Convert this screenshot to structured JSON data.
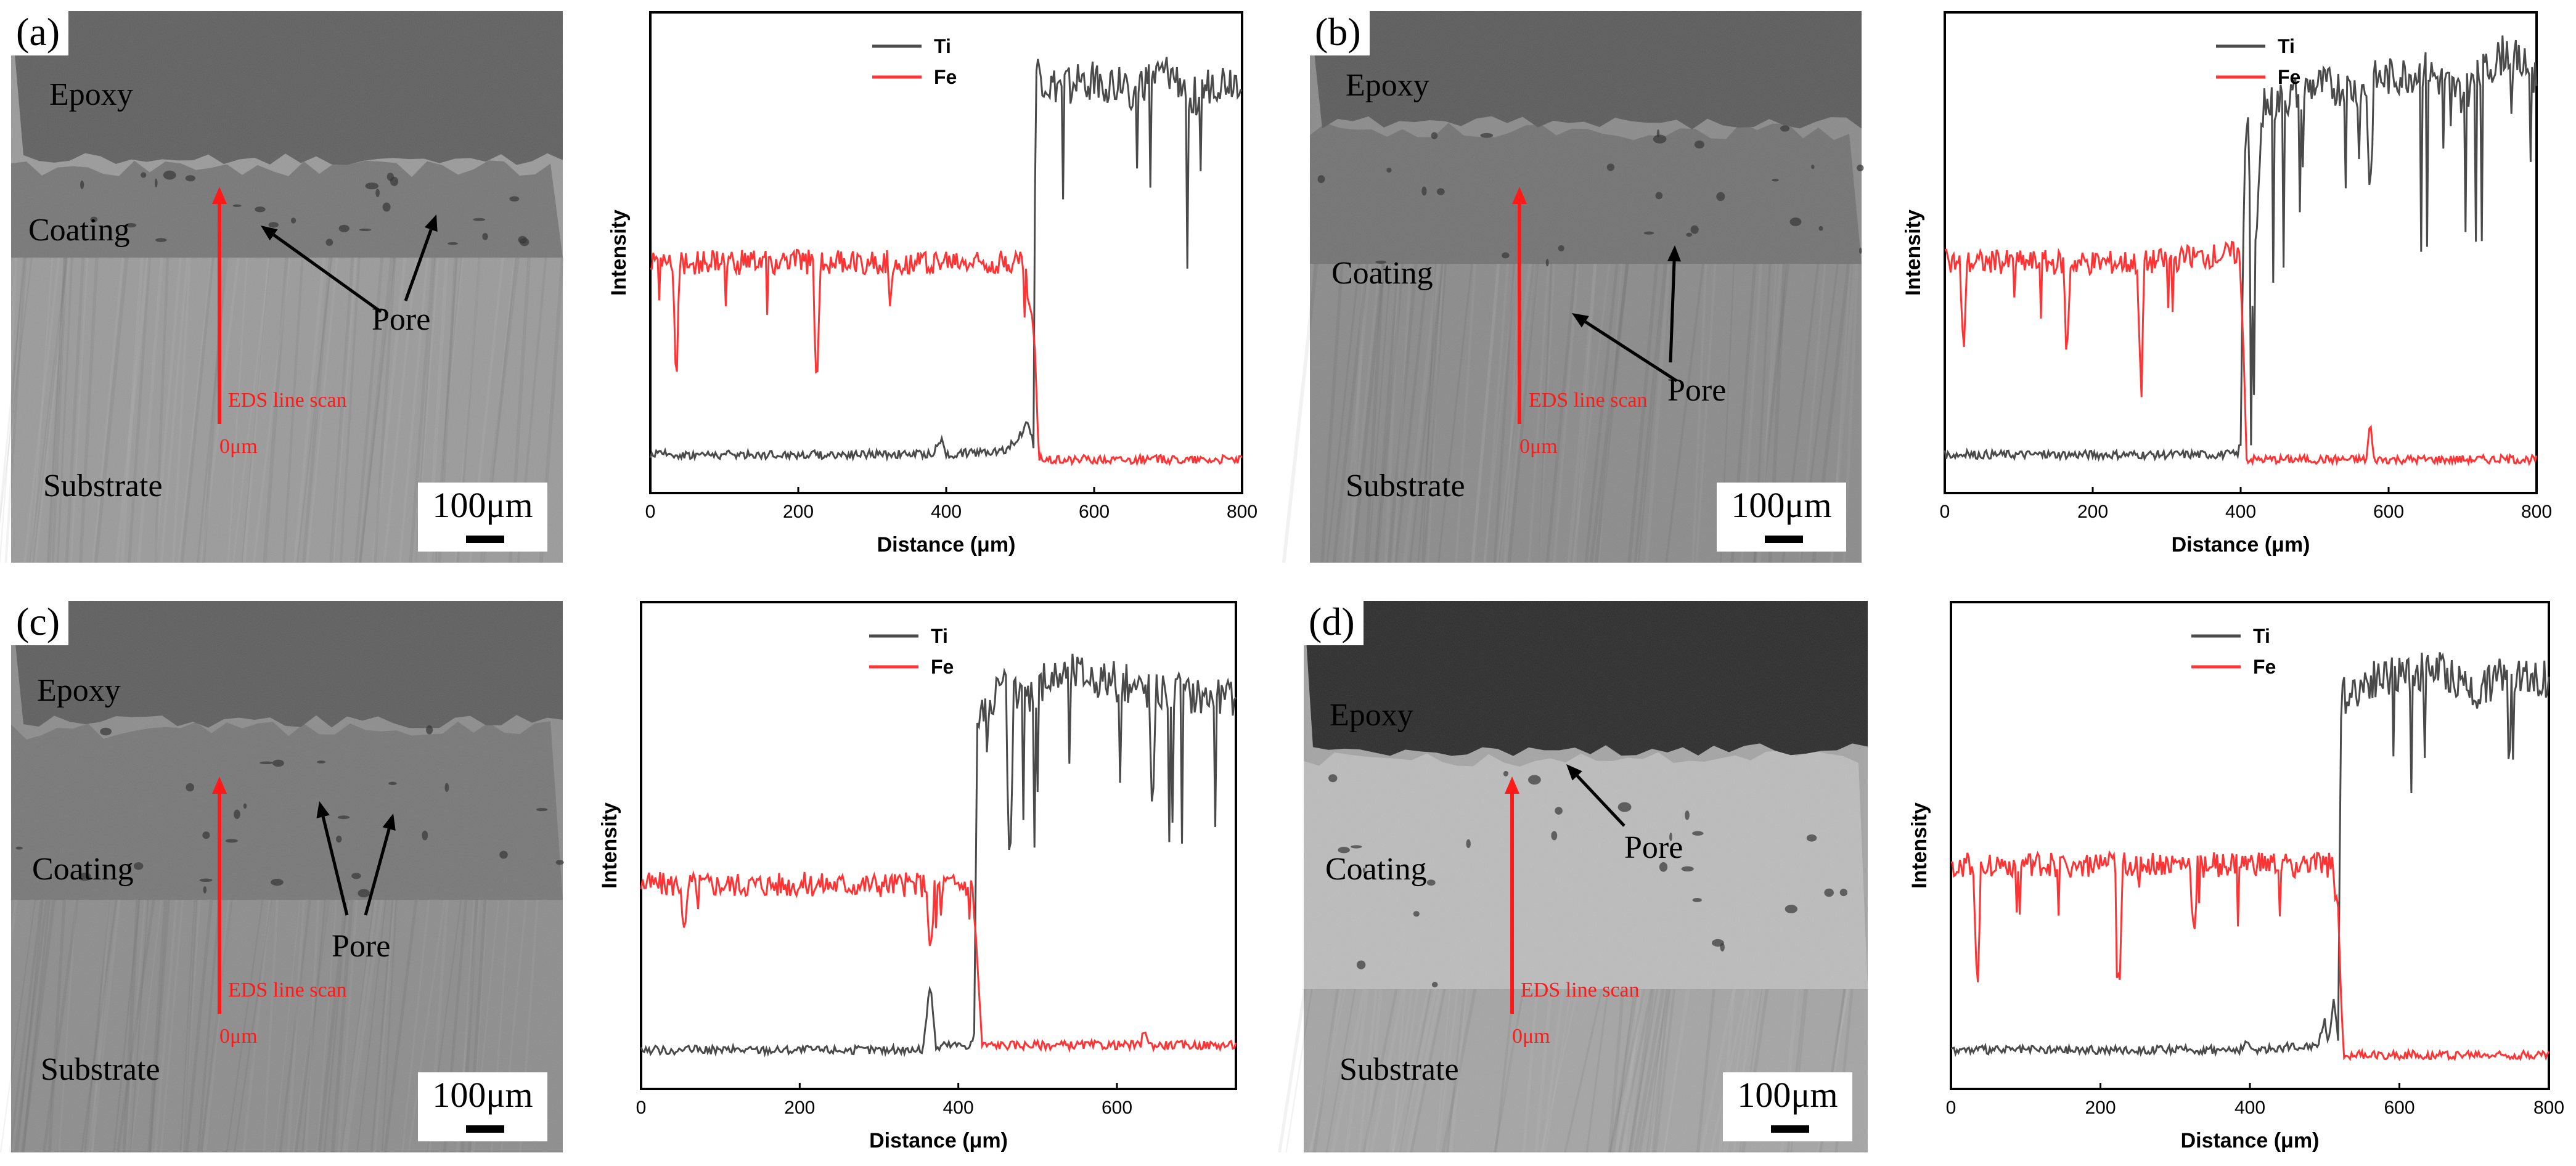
{
  "colors": {
    "ti": "#4a4a4a",
    "fe": "#ff3333",
    "scan": "#ff1a1a"
  },
  "sem_panels": [
    {
      "letter": "(a)",
      "epoxy": "Epoxy",
      "coating": "Coating",
      "substrate": "Substrate",
      "pore": "Pore",
      "scan_label": "EDS line scan",
      "zero_label": "0μm",
      "scale": "100μm"
    },
    {
      "letter": "(b)",
      "epoxy": "Epoxy",
      "coating": "Coating",
      "substrate": "Substrate",
      "pore": "Pore",
      "scan_label": "EDS line scan",
      "zero_label": "0μm",
      "scale": "100μm"
    },
    {
      "letter": "(c)",
      "epoxy": "Epoxy",
      "coating": "Coating",
      "substrate": "Substrate",
      "pore": "Pore",
      "scan_label": "EDS line scan",
      "zero_label": "0μm",
      "scale": "100μm"
    },
    {
      "letter": "(d)",
      "epoxy": "Epoxy",
      "coating": "Coating",
      "substrate": "Substrate",
      "pore": "Pore",
      "scan_label": "EDS line scan",
      "zero_label": "0μm",
      "scale": "100μm"
    }
  ],
  "chart_data": [
    {
      "type": "line",
      "panel": "a",
      "xlabel": "Distance (μm)",
      "ylabel": "Intensity",
      "xlim": [
        0,
        800
      ],
      "xticks": [
        "0",
        "200",
        "400",
        "600",
        "800"
      ],
      "ylim": [
        0,
        100
      ],
      "step_x": 520,
      "legend": [
        "Ti",
        "Fe"
      ],
      "series": [
        {
          "name": "Ti",
          "x": [
            0,
            380,
            395,
            400,
            480,
            500,
            510,
            518,
            521,
            540,
            600,
            650,
            700,
            740,
            760,
            800
          ],
          "y": [
            8,
            8,
            11,
            8,
            9,
            12,
            15,
            10,
            88,
            84,
            86,
            84,
            87,
            82,
            85,
            86
          ]
        },
        {
          "name": "Fe",
          "x": [
            0,
            30,
            35,
            40,
            220,
            225,
            230,
            320,
            325,
            330,
            505,
            512,
            520,
            525,
            600,
            800
          ],
          "y": [
            48,
            48,
            22,
            48,
            48,
            18,
            48,
            48,
            38,
            48,
            48,
            40,
            30,
            7,
            7,
            7
          ]
        }
      ]
    },
    {
      "type": "line",
      "panel": "b",
      "xlabel": "Distance (μm)",
      "ylabel": "Intensity",
      "xlim": [
        0,
        800
      ],
      "xticks": [
        "0",
        "200",
        "400",
        "600",
        "800"
      ],
      "ylim": [
        0,
        100
      ],
      "step_x": 400,
      "legend": [
        "Ti",
        "Fe"
      ],
      "series": [
        {
          "name": "Ti",
          "x": [
            0,
            395,
            400,
            405,
            410,
            415,
            430,
            500,
            570,
            575,
            580,
            650,
            700,
            760,
            800
          ],
          "y": [
            8,
            8,
            10,
            70,
            82,
            35,
            80,
            85,
            84,
            60,
            86,
            88,
            83,
            92,
            86
          ]
        },
        {
          "name": "Fe",
          "x": [
            0,
            20,
            25,
            30,
            160,
            165,
            170,
            260,
            265,
            270,
            398,
            404,
            408,
            570,
            575,
            580,
            800
          ],
          "y": [
            48,
            48,
            28,
            48,
            48,
            27,
            48,
            48,
            20,
            48,
            50,
            30,
            7,
            7,
            15,
            7,
            7
          ]
        }
      ]
    },
    {
      "type": "line",
      "panel": "c",
      "xlabel": "Distance (μm)",
      "ylabel": "Intensity",
      "xlim": [
        0,
        750
      ],
      "xticks": [
        "0",
        "200",
        "400",
        "600"
      ],
      "ylim": [
        0,
        100
      ],
      "step_x": 422,
      "legend": [
        "Ti",
        "Fe"
      ],
      "series": [
        {
          "name": "Ti",
          "x": [
            0,
            355,
            365,
            372,
            380,
            415,
            420,
            424,
            440,
            460,
            465,
            470,
            540,
            640,
            645,
            650,
            750
          ],
          "y": [
            8,
            8,
            22,
            8,
            9,
            9,
            11,
            76,
            80,
            82,
            40,
            80,
            86,
            82,
            55,
            82,
            80
          ]
        },
        {
          "name": "Fe",
          "x": [
            0,
            50,
            55,
            60,
            360,
            365,
            370,
            418,
            424,
            430,
            630,
            635,
            640,
            750
          ],
          "y": [
            42,
            42,
            30,
            42,
            42,
            25,
            42,
            42,
            26,
            9,
            9,
            13,
            9,
            9
          ]
        }
      ]
    },
    {
      "type": "line",
      "panel": "d",
      "xlabel": "Distance (μm)",
      "ylabel": "Intensity",
      "xlim": [
        0,
        800
      ],
      "xticks": [
        "0",
        "200",
        "400",
        "600",
        "800"
      ],
      "ylim": [
        0,
        100
      ],
      "step_x": 520,
      "legend": [
        "Ti",
        "Fe"
      ],
      "series": [
        {
          "name": "Ti",
          "x": [
            0,
            390,
            395,
            400,
            490,
            500,
            505,
            512,
            518,
            522,
            560,
            650,
            700,
            760,
            800
          ],
          "y": [
            8,
            8,
            10,
            8,
            9,
            14,
            10,
            18,
            10,
            80,
            84,
            86,
            82,
            86,
            84
          ]
        },
        {
          "name": "Fe",
          "x": [
            0,
            30,
            35,
            40,
            220,
            225,
            230,
            320,
            325,
            330,
            510,
            518,
            525,
            800
          ],
          "y": [
            46,
            46,
            18,
            46,
            46,
            15,
            46,
            46,
            30,
            46,
            46,
            36,
            7,
            7
          ]
        }
      ]
    }
  ]
}
